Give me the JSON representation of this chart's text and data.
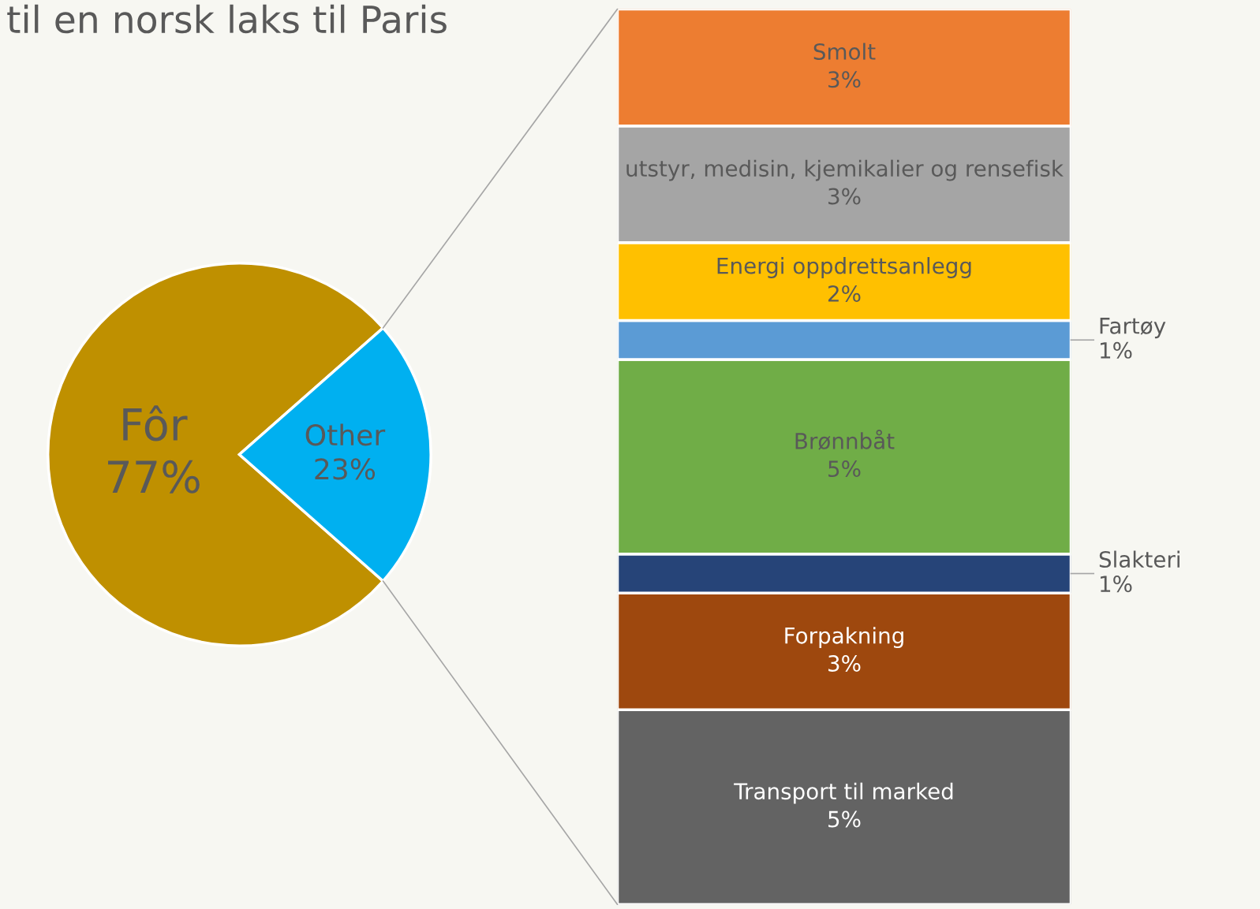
{
  "chart_data": [
    {
      "type": "pie",
      "title": "til en norsk laks til Paris",
      "categories": [
        "Fôr",
        "Other"
      ],
      "values": [
        77,
        23
      ],
      "colors": [
        "#bf9000",
        "#00b0f0"
      ],
      "value_labels": [
        "77%",
        "23%"
      ],
      "legend": false
    },
    {
      "type": "bar",
      "stacked": true,
      "categories": [
        null
      ],
      "legend": false,
      "series": [
        {
          "name": "Transport til marked",
          "color": "#636363",
          "values": [
            5
          ],
          "value_labels": [
            "5%"
          ]
        },
        {
          "name": "Forpakning",
          "color": "#9e480e",
          "values": [
            3
          ],
          "value_labels": [
            "3%"
          ]
        },
        {
          "name": "Slakteri",
          "color": "#264478",
          "values": [
            1
          ],
          "value_labels": [
            "1%"
          ]
        },
        {
          "name": "Brønnbåt",
          "color": "#70ad47",
          "values": [
            5
          ],
          "value_labels": [
            "5%"
          ]
        },
        {
          "name": "Fartøy",
          "color": "#5b9bd5",
          "values": [
            1
          ],
          "value_labels": [
            "1%"
          ]
        },
        {
          "name": "Energi oppdrettsanlegg",
          "color": "#ffc000",
          "values": [
            2
          ],
          "value_labels": [
            "2%"
          ]
        },
        {
          "name": "utstyr, medisin, kjemikalier og rensefisk",
          "color": "#a5a5a5",
          "values": [
            3
          ],
          "value_labels": [
            "3%"
          ]
        },
        {
          "name": "Smolt",
          "color": "#ed7d31",
          "values": [
            3
          ],
          "value_labels": [
            "3%"
          ]
        }
      ]
    }
  ]
}
